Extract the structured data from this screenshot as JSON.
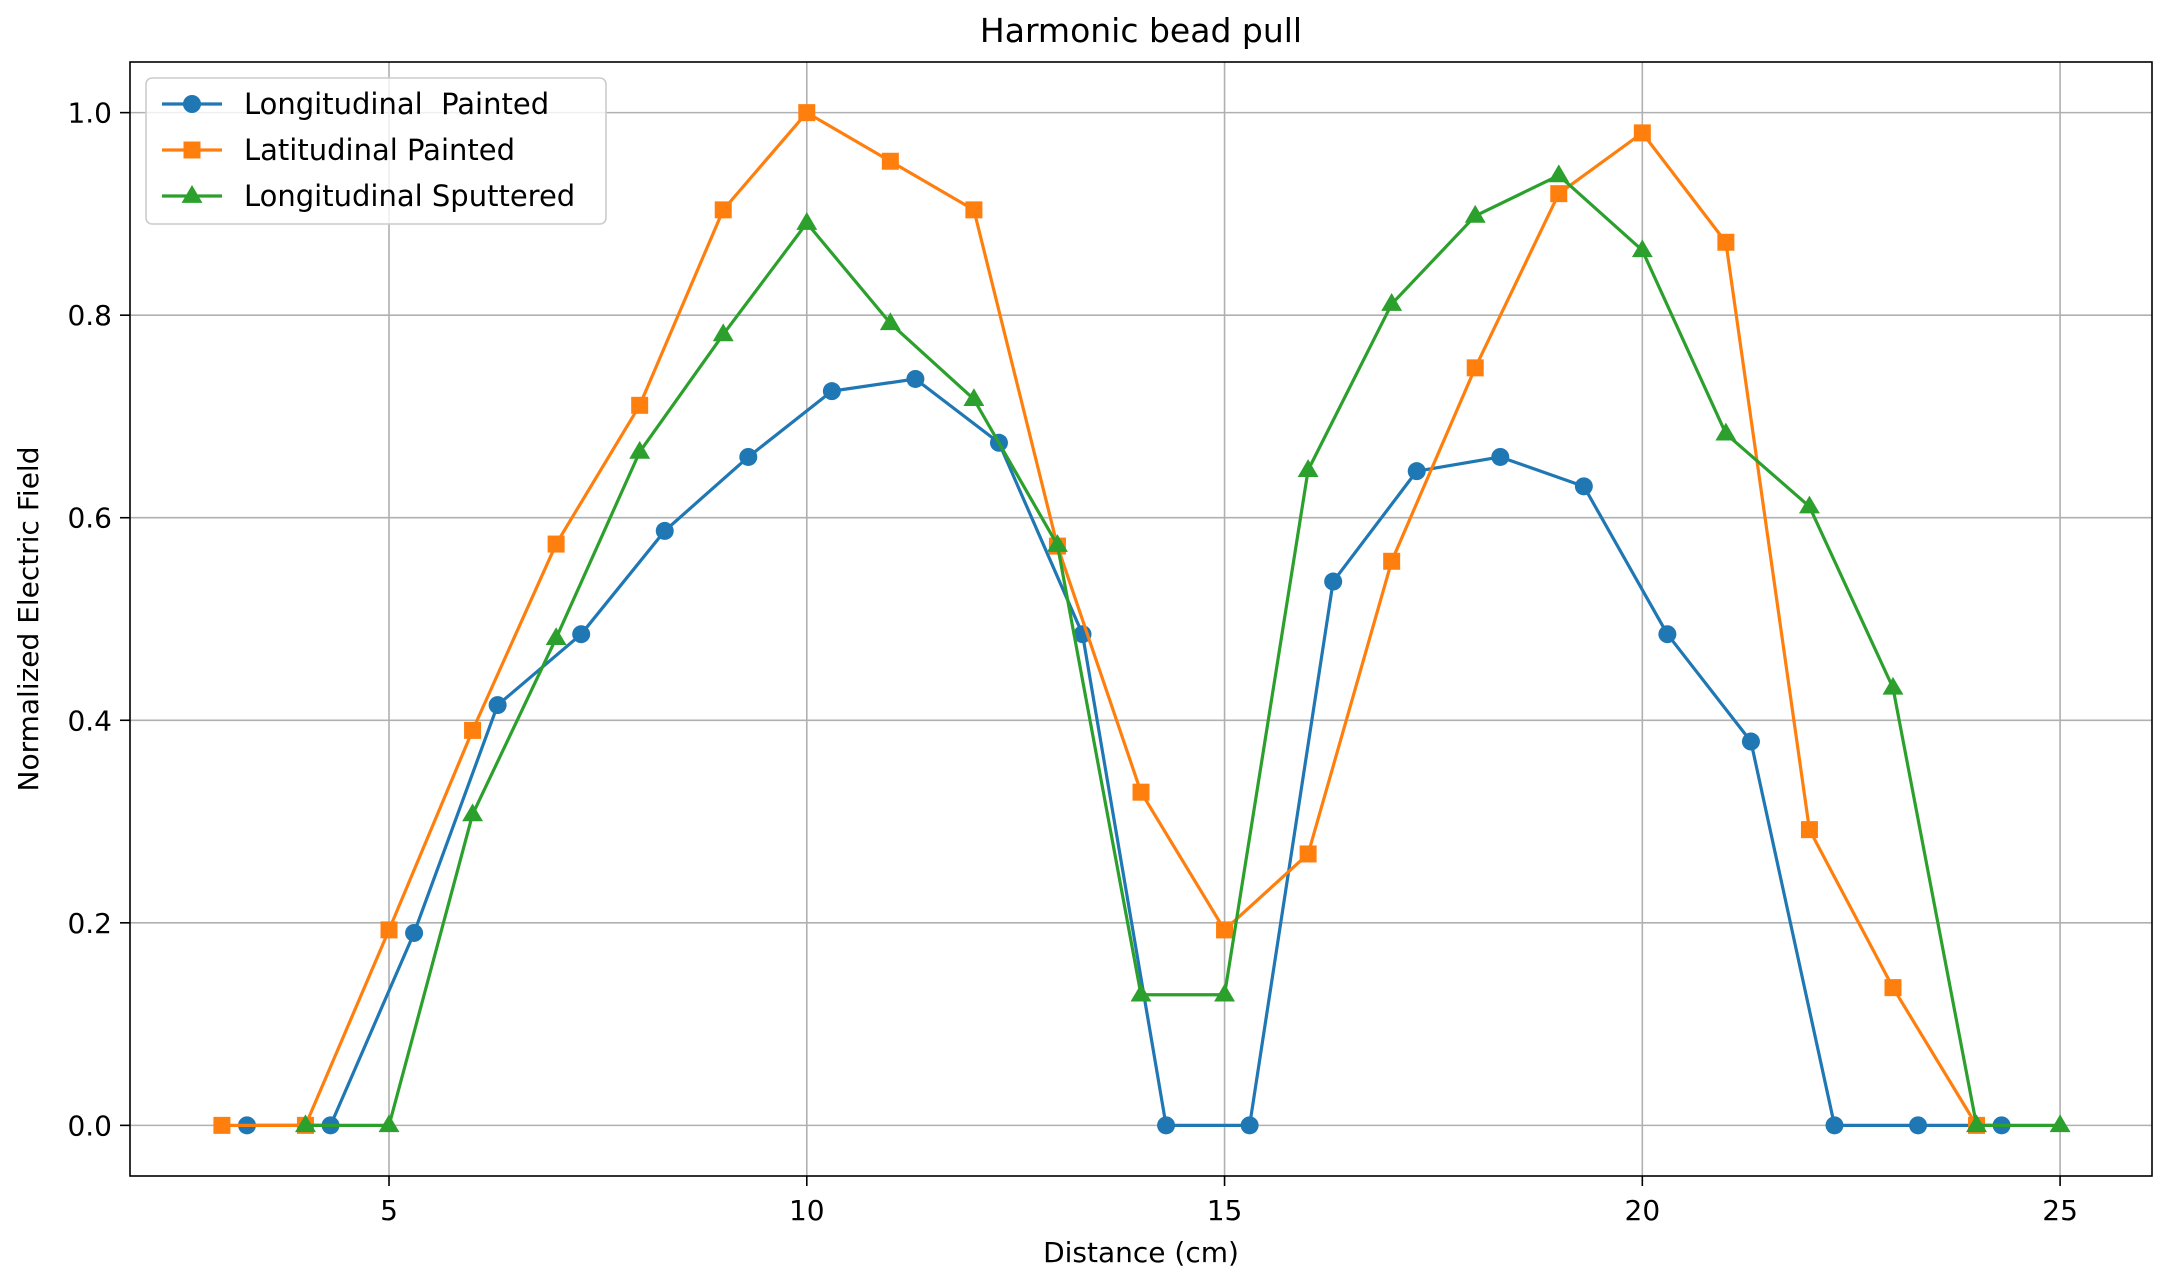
{
  "chart_data": {
    "type": "line",
    "title": "Harmonic bead pull",
    "xlabel": "Distance (cm)",
    "ylabel": "Normalized Electric Field",
    "xlim": [
      1.9,
      26.1
    ],
    "ylim": [
      -0.05,
      1.05
    ],
    "xticks": [
      5,
      10,
      15,
      20,
      25
    ],
    "xtick_labels": [
      "5",
      "10",
      "15",
      "20",
      "25"
    ],
    "yticks": [
      0.0,
      0.2,
      0.4,
      0.6,
      0.8,
      1.0
    ],
    "ytick_labels": [
      "0.0",
      "0.2",
      "0.4",
      "0.6",
      "0.8",
      "1.0"
    ],
    "grid": true,
    "legend_position": "top-left",
    "series": [
      {
        "name": "Longitudinal  Painted",
        "color": "#1f77b4",
        "marker": "circle",
        "x": [
          3.3,
          4.3,
          5.3,
          6.3,
          7.3,
          8.3,
          9.3,
          10.3,
          11.3,
          12.3,
          13.3,
          14.3,
          15.3,
          16.3,
          17.3,
          18.3,
          19.3,
          20.3,
          21.3,
          22.3,
          23.3,
          24.3
        ],
        "y": [
          0.0,
          0.0,
          0.19,
          0.415,
          0.485,
          0.587,
          0.66,
          0.725,
          0.737,
          0.674,
          0.485,
          0.0,
          0.0,
          0.537,
          0.646,
          0.66,
          0.631,
          0.485,
          0.379,
          0.0,
          0.0,
          0.0
        ]
      },
      {
        "name": "Latitudinal Painted",
        "color": "#ff7f0e",
        "marker": "square",
        "x": [
          3,
          4,
          5,
          6,
          7,
          8,
          9,
          10,
          11,
          12,
          13,
          14,
          15,
          16,
          17,
          18,
          19,
          20,
          21,
          22,
          23,
          24
        ],
        "y": [
          0.0,
          0.0,
          0.193,
          0.39,
          0.574,
          0.711,
          0.904,
          1.0,
          0.952,
          0.904,
          0.572,
          0.329,
          0.193,
          0.268,
          0.557,
          0.748,
          0.92,
          0.98,
          0.872,
          0.292,
          0.136,
          0.0
        ]
      },
      {
        "name": "Longitudinal Sputtered",
        "color": "#2ca02c",
        "marker": "triangle",
        "x": [
          4,
          5,
          6,
          7,
          8,
          9,
          10,
          11,
          12,
          13,
          14,
          15,
          16,
          17,
          18,
          19,
          20,
          21,
          22,
          23,
          24,
          25
        ],
        "y": [
          0.0,
          0.0,
          0.307,
          0.481,
          0.665,
          0.781,
          0.891,
          0.792,
          0.717,
          0.573,
          0.129,
          0.129,
          0.647,
          0.811,
          0.898,
          0.938,
          0.864,
          0.683,
          0.611,
          0.432,
          0.0,
          0.0
        ]
      }
    ]
  }
}
